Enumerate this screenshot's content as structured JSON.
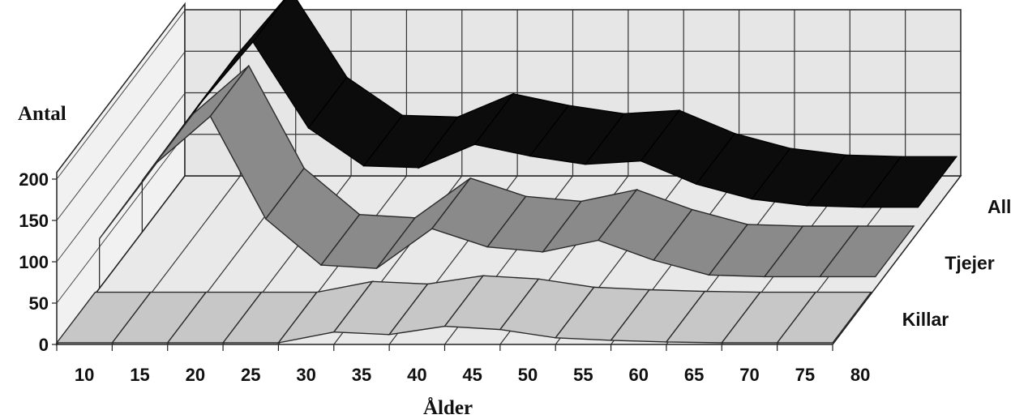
{
  "chart_data": {
    "type": "area",
    "style": "3d-ribbon",
    "xlabel": "Ålder",
    "ylabel": "Antal",
    "x": [
      10,
      15,
      20,
      25,
      30,
      35,
      40,
      45,
      50,
      55,
      60,
      65,
      70,
      75,
      80
    ],
    "y_ticks": [
      0,
      50,
      100,
      150,
      200
    ],
    "ylim": [
      0,
      200
    ],
    "grid": true,
    "series": [
      {
        "name": "Killar",
        "values": [
          2,
          2,
          2,
          2,
          2,
          15,
          12,
          22,
          18,
          8,
          5,
          3,
          2,
          2,
          2
        ]
      },
      {
        "name": "Tjejer",
        "values": [
          60,
          150,
          208,
          84,
          28,
          24,
          72,
          50,
          44,
          58,
          34,
          16,
          14,
          14,
          14
        ]
      },
      {
        "name": "Alla",
        "values": [
          62,
          152,
          230,
          126,
          80,
          78,
          106,
          92,
          82,
          86,
          58,
          40,
          32,
          30,
          30
        ]
      }
    ],
    "colors": {
      "Killar": "#c7c7c7",
      "Tjejer": "#8a8a8a",
      "Alla": "#0c0c0c"
    }
  }
}
